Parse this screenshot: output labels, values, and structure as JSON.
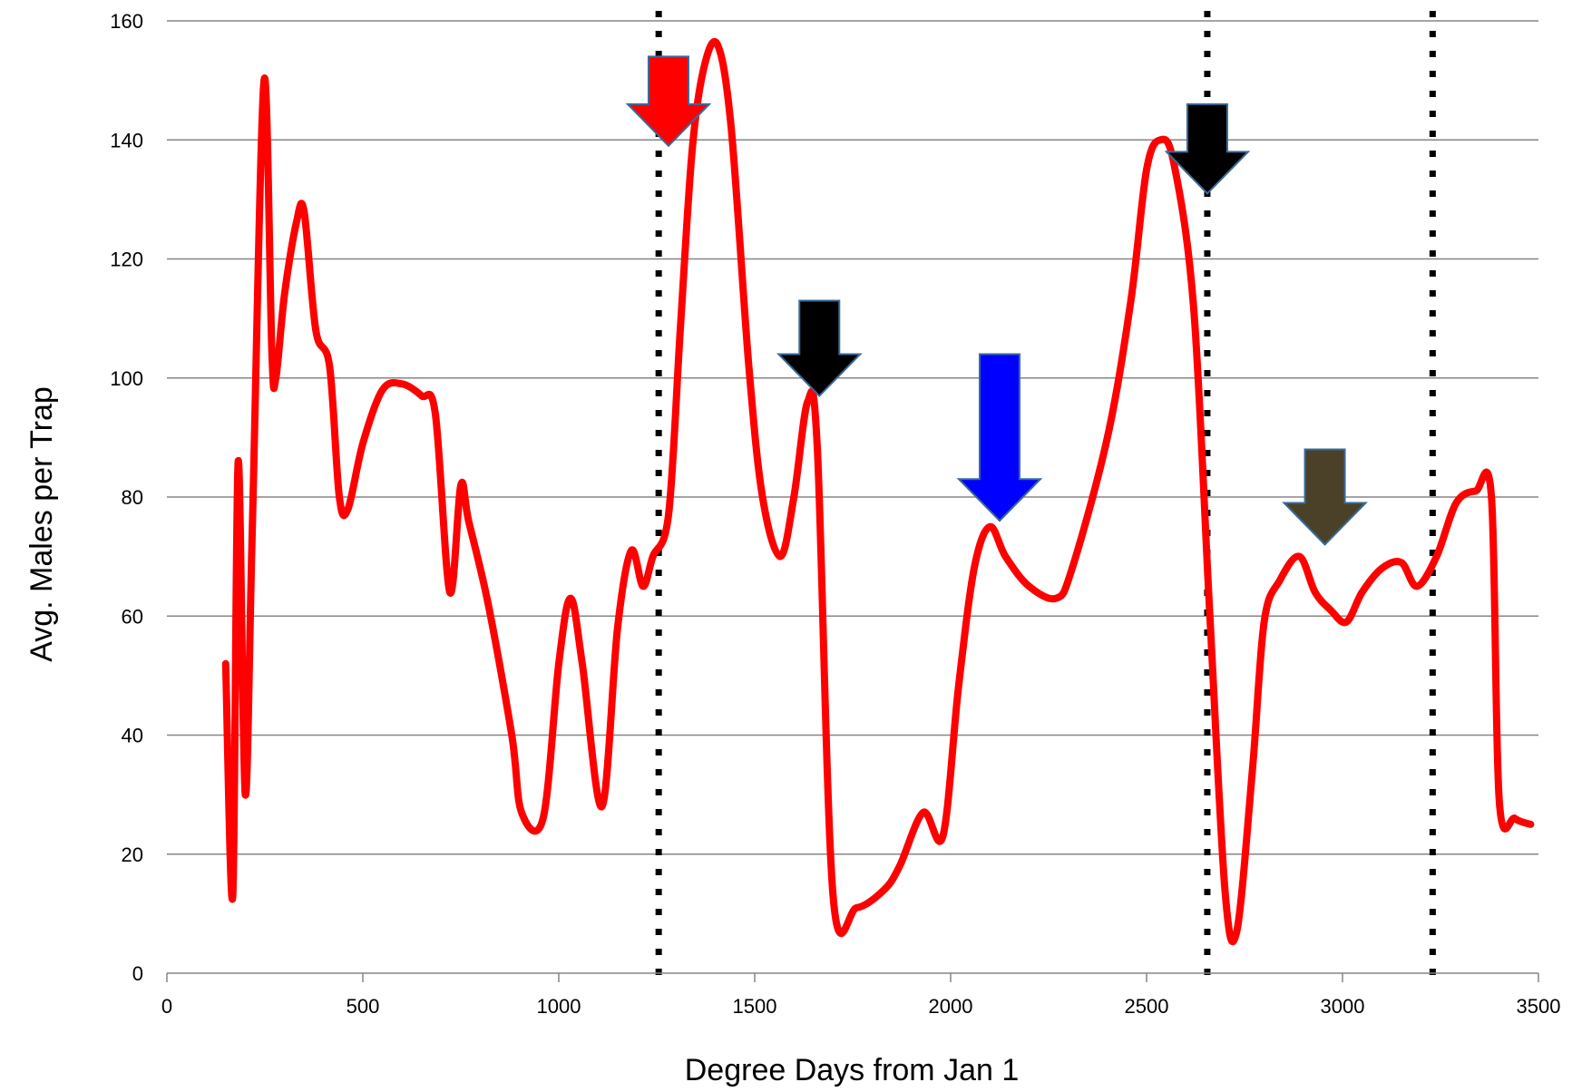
{
  "chart_data": {
    "type": "line",
    "xlabel": "Degree Days from Jan 1",
    "ylabel": "Avg. Males per Trap",
    "xlim": [
      0,
      3500
    ],
    "ylim": [
      0,
      160
    ],
    "xticks": [
      0,
      500,
      1000,
      1500,
      2000,
      2500,
      3000,
      3500
    ],
    "yticks": [
      0,
      20,
      40,
      60,
      80,
      100,
      120,
      140,
      160
    ],
    "grid": "horizontal",
    "legend": "none",
    "series": [
      {
        "color": "#ff0000",
        "smooth": true,
        "points": [
          [
            150,
            52
          ],
          [
            168,
            13
          ],
          [
            182,
            86
          ],
          [
            200,
            30
          ],
          [
            218,
            75
          ],
          [
            248,
            150
          ],
          [
            268,
            104
          ],
          [
            278,
            100
          ],
          [
            300,
            114
          ],
          [
            330,
            126
          ],
          [
            350,
            128
          ],
          [
            380,
            108
          ],
          [
            415,
            102
          ],
          [
            440,
            80
          ],
          [
            462,
            78
          ],
          [
            500,
            89
          ],
          [
            550,
            98
          ],
          [
            600,
            99
          ],
          [
            650,
            97
          ],
          [
            685,
            94
          ],
          [
            722,
            64
          ],
          [
            750,
            82
          ],
          [
            770,
            76
          ],
          [
            820,
            62
          ],
          [
            880,
            40
          ],
          [
            905,
            27
          ],
          [
            960,
            26
          ],
          [
            1000,
            52
          ],
          [
            1030,
            63
          ],
          [
            1060,
            52
          ],
          [
            1110,
            28
          ],
          [
            1150,
            58
          ],
          [
            1185,
            71
          ],
          [
            1215,
            65
          ],
          [
            1240,
            70
          ],
          [
            1280,
            77
          ],
          [
            1310,
            108
          ],
          [
            1340,
            138
          ],
          [
            1370,
            152
          ],
          [
            1405,
            156
          ],
          [
            1440,
            142
          ],
          [
            1485,
            102
          ],
          [
            1520,
            80
          ],
          [
            1565,
            70
          ],
          [
            1600,
            80
          ],
          [
            1635,
            96
          ],
          [
            1660,
            88
          ],
          [
            1700,
            13
          ],
          [
            1760,
            11
          ],
          [
            1830,
            14
          ],
          [
            1870,
            18
          ],
          [
            1930,
            27
          ],
          [
            1980,
            23
          ],
          [
            2020,
            48
          ],
          [
            2060,
            68
          ],
          [
            2100,
            75
          ],
          [
            2140,
            70
          ],
          [
            2200,
            65
          ],
          [
            2270,
            63
          ],
          [
            2310,
            68
          ],
          [
            2400,
            90
          ],
          [
            2460,
            113
          ],
          [
            2500,
            135
          ],
          [
            2535,
            140
          ],
          [
            2570,
            136
          ],
          [
            2620,
            112
          ],
          [
            2660,
            62
          ],
          [
            2700,
            14
          ],
          [
            2730,
            7
          ],
          [
            2770,
            34
          ],
          [
            2800,
            59
          ],
          [
            2840,
            66
          ],
          [
            2890,
            70
          ],
          [
            2930,
            64
          ],
          [
            2970,
            61
          ],
          [
            3010,
            59
          ],
          [
            3050,
            64
          ],
          [
            3100,
            68
          ],
          [
            3150,
            69
          ],
          [
            3190,
            65
          ],
          [
            3240,
            70
          ],
          [
            3290,
            79
          ],
          [
            3340,
            81
          ],
          [
            3380,
            80
          ],
          [
            3400,
            29
          ],
          [
            3440,
            26
          ],
          [
            3480,
            25
          ]
        ]
      }
    ],
    "reference_lines_x": [
      1255,
      2655,
      3230
    ],
    "arrows": [
      {
        "x": 1280,
        "y_top": 154,
        "y_tip": 139,
        "color": "#ff0000"
      },
      {
        "x": 1665,
        "y_top": 113,
        "y_tip": 97,
        "color": "#000000"
      },
      {
        "x": 2125,
        "y_top": 104,
        "y_tip": 76,
        "color": "#0000ff"
      },
      {
        "x": 2655,
        "y_top": 146,
        "y_tip": 131,
        "color": "#000000"
      },
      {
        "x": 2955,
        "y_top": 88,
        "y_tip": 72,
        "color": "#4a4128"
      }
    ]
  }
}
